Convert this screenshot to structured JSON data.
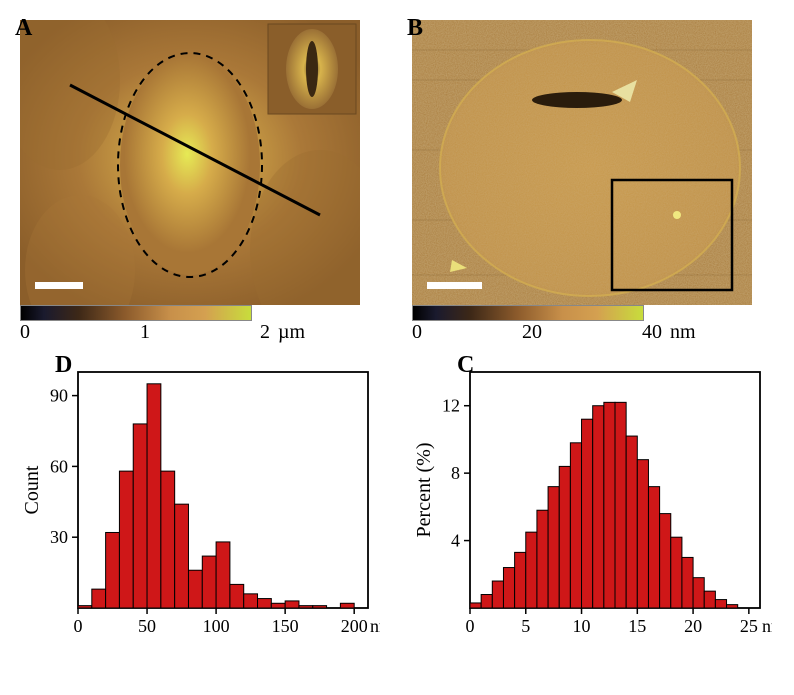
{
  "panels": {
    "A": {
      "label": "A",
      "colorbar": {
        "ticks": [
          "0",
          "1",
          "2"
        ],
        "unit": "µm",
        "gradient": [
          "#000000",
          "#1a1a2e",
          "#3d2817",
          "#8b5a2b",
          "#c8904a",
          "#d4a050",
          "#c8dd3c"
        ]
      }
    },
    "B": {
      "label": "B",
      "colorbar": {
        "ticks": [
          "0",
          "20",
          "40"
        ],
        "unit": "nm",
        "gradient": [
          "#000000",
          "#1a1a2e",
          "#3d2817",
          "#8b5a2b",
          "#c8904a",
          "#d4a050",
          "#c8dd3c"
        ]
      }
    },
    "D": {
      "label": "D",
      "type": "histogram",
      "xlabel_unit": "nm",
      "ylabel": "Count",
      "xlim": [
        0,
        210
      ],
      "ylim": [
        0,
        100
      ],
      "xticks": [
        0,
        50,
        100,
        150,
        200
      ],
      "yticks": [
        30,
        60,
        90
      ],
      "bar_color": "#cf1718",
      "bar_edge": "#000000",
      "bin_width": 10,
      "bars": [
        {
          "x": 10,
          "y": 1
        },
        {
          "x": 20,
          "y": 8
        },
        {
          "x": 30,
          "y": 32
        },
        {
          "x": 40,
          "y": 58
        },
        {
          "x": 50,
          "y": 78
        },
        {
          "x": 60,
          "y": 95
        },
        {
          "x": 70,
          "y": 58
        },
        {
          "x": 80,
          "y": 44
        },
        {
          "x": 90,
          "y": 16
        },
        {
          "x": 100,
          "y": 22
        },
        {
          "x": 110,
          "y": 28
        },
        {
          "x": 120,
          "y": 10
        },
        {
          "x": 130,
          "y": 6
        },
        {
          "x": 140,
          "y": 4
        },
        {
          "x": 150,
          "y": 2
        },
        {
          "x": 160,
          "y": 3
        },
        {
          "x": 170,
          "y": 1
        },
        {
          "x": 180,
          "y": 1
        },
        {
          "x": 200,
          "y": 2
        }
      ]
    },
    "C": {
      "label": "C",
      "type": "histogram",
      "xlabel_unit": "nm",
      "ylabel": "Percent (%)",
      "xlim": [
        0,
        26
      ],
      "ylim": [
        0,
        14
      ],
      "xticks": [
        0,
        5,
        10,
        15,
        20,
        25
      ],
      "yticks": [
        4,
        8,
        12
      ],
      "bar_color": "#cf1718",
      "bar_edge": "#000000",
      "bin_width": 1,
      "bars": [
        {
          "x": 1,
          "y": 0.3
        },
        {
          "x": 2,
          "y": 0.8
        },
        {
          "x": 3,
          "y": 1.6
        },
        {
          "x": 4,
          "y": 2.4
        },
        {
          "x": 5,
          "y": 3.3
        },
        {
          "x": 6,
          "y": 4.5
        },
        {
          "x": 7,
          "y": 5.8
        },
        {
          "x": 8,
          "y": 7.2
        },
        {
          "x": 9,
          "y": 8.4
        },
        {
          "x": 10,
          "y": 9.8
        },
        {
          "x": 11,
          "y": 11.2
        },
        {
          "x": 12,
          "y": 12.0
        },
        {
          "x": 13,
          "y": 12.2
        },
        {
          "x": 14,
          "y": 12.2
        },
        {
          "x": 15,
          "y": 10.2
        },
        {
          "x": 16,
          "y": 8.8
        },
        {
          "x": 17,
          "y": 7.2
        },
        {
          "x": 18,
          "y": 5.6
        },
        {
          "x": 19,
          "y": 4.2
        },
        {
          "x": 20,
          "y": 3.0
        },
        {
          "x": 21,
          "y": 1.8
        },
        {
          "x": 22,
          "y": 1.0
        },
        {
          "x": 23,
          "y": 0.5
        },
        {
          "x": 24,
          "y": 0.2
        }
      ]
    }
  },
  "afm": {
    "A": {
      "background_gradient": "radial-gradient(ellipse 120px 180px at 50% 48%, #d8e050 0%, #cfa048 30%, #b8843c 55%, #9a6a30 100%)",
      "scalebar_color": "#ffffff"
    },
    "B": {
      "background": "#b8843c",
      "disc_color": "#c89850",
      "scalebar_color": "#ffffff"
    }
  }
}
